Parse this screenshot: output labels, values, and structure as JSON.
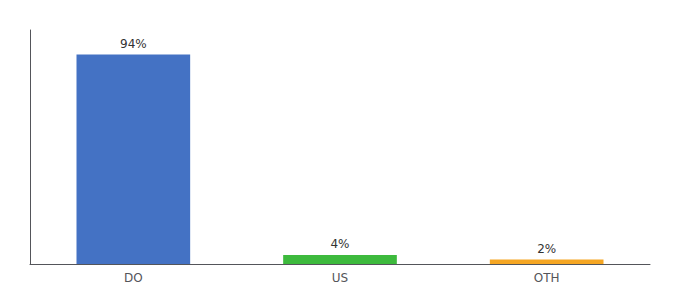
{
  "chart_data": {
    "type": "bar",
    "categories": [
      "DO",
      "US",
      "OTH"
    ],
    "values": [
      94,
      4,
      2
    ],
    "value_labels": [
      "94%",
      "4%",
      "2%"
    ],
    "colors": [
      "#4472c4",
      "#3dba3d",
      "#f5a623"
    ],
    "ylim": [
      0,
      105
    ],
    "yticks": [],
    "tick_labels": "x",
    "data_labels": true,
    "grid": false
  }
}
